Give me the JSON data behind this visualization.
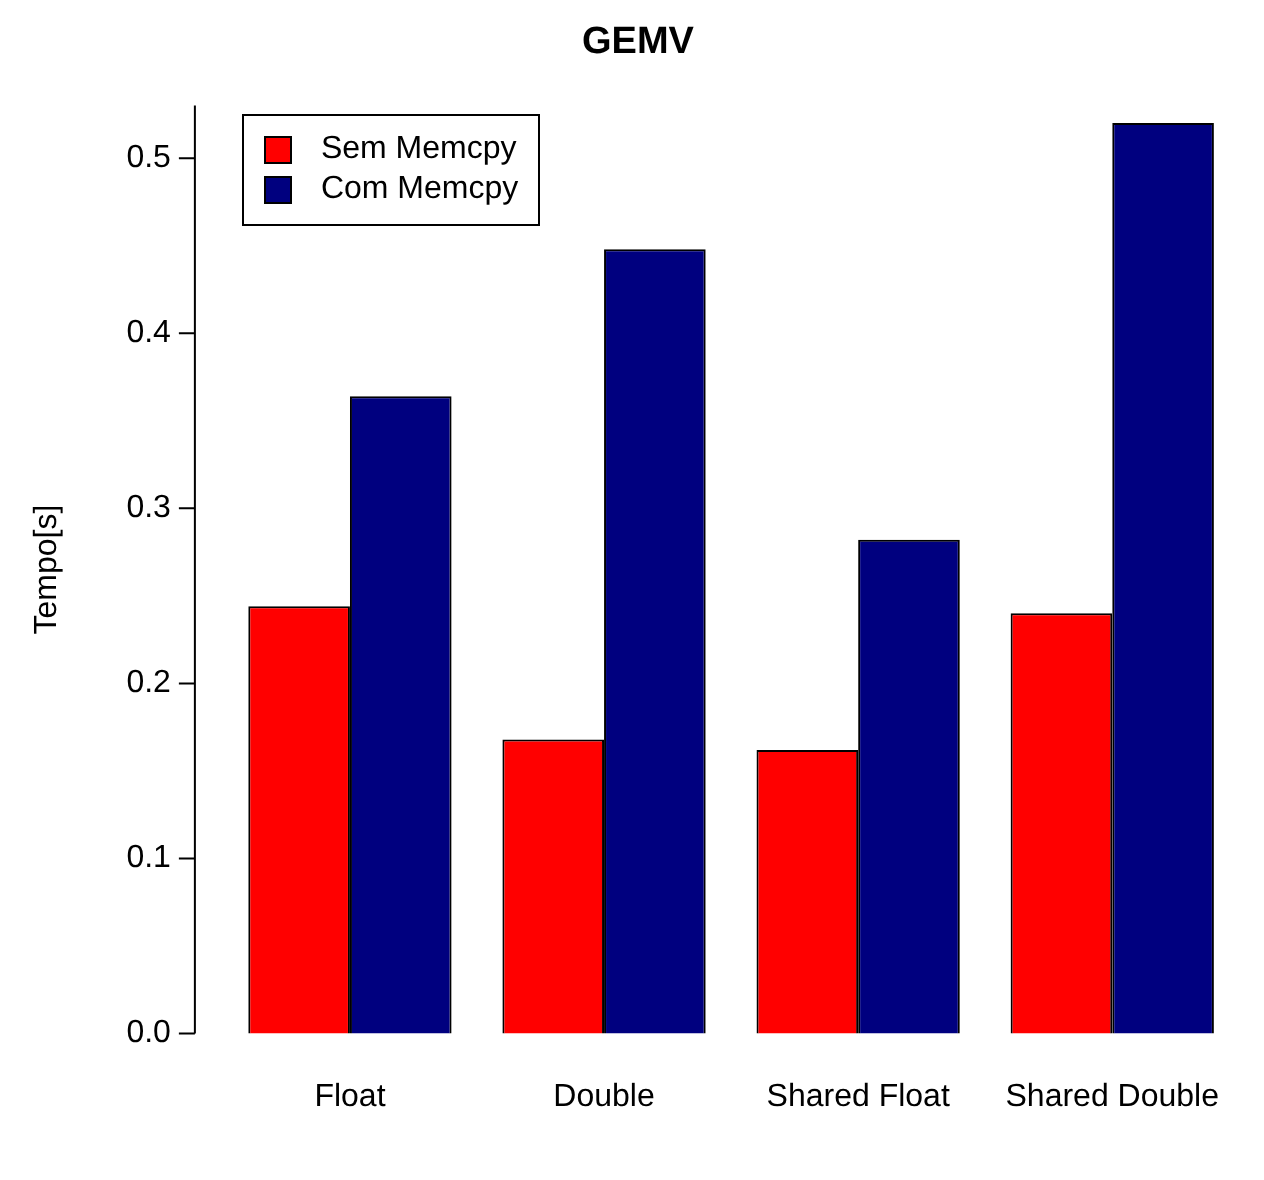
{
  "chart_data": {
    "type": "bar",
    "title": "GEMV",
    "ylabel": "Tempo[s]",
    "categories": [
      "Float",
      "Double",
      "Shared Float",
      "Shared Double"
    ],
    "series": [
      {
        "name": "Sem Memcpy",
        "color": "#ff0000",
        "values": [
          0.244,
          0.168,
          0.162,
          0.24
        ]
      },
      {
        "name": "Com Memcpy",
        "color": "#00007f",
        "values": [
          0.364,
          0.448,
          0.282,
          0.52
        ]
      }
    ],
    "ylim": [
      0,
      0.53
    ],
    "yticks": [
      {
        "value": 0,
        "label": "0.0"
      },
      0.1,
      0.2,
      0.3,
      0.4,
      0.5
    ],
    "grid": false,
    "legend": "top left"
  }
}
